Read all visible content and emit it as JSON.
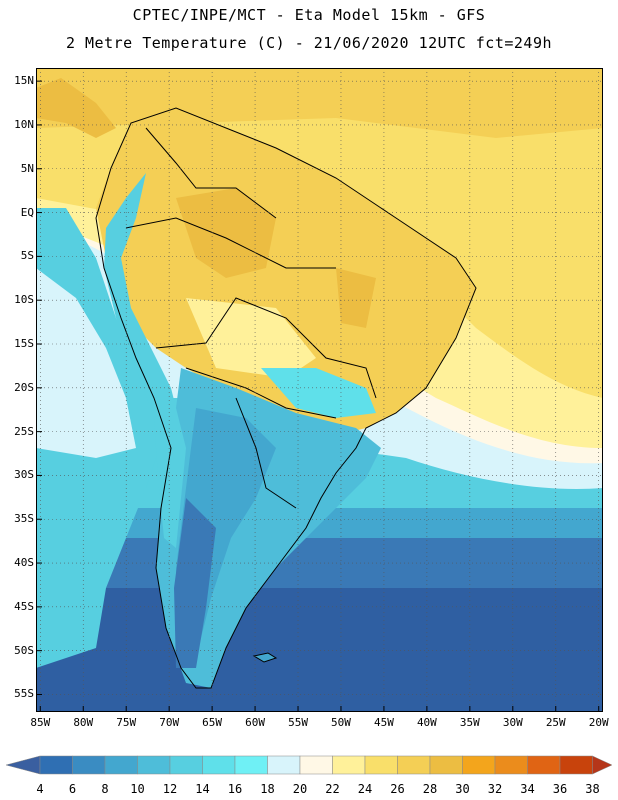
{
  "header": {
    "line1": "CPTEC/INPE/MCT -  Eta Model 15km - GFS",
    "line2": "2 Metre Temperature (C) - 21/06/2020 12UTC fct=249h"
  },
  "map": {
    "lat_labels": [
      "15N",
      "10N",
      "5N",
      "EQ",
      "5S",
      "10S",
      "15S",
      "20S",
      "25S",
      "30S",
      "35S",
      "40S",
      "45S",
      "50S",
      "55S"
    ],
    "lon_labels": [
      "85W",
      "80W",
      "75W",
      "70W",
      "65W",
      "60W",
      "55W",
      "50W",
      "45W",
      "40W",
      "35W",
      "30W",
      "25W",
      "20W"
    ],
    "lat_range": [
      16.5,
      -57
    ],
    "lon_range": [
      -85.5,
      -19.5
    ]
  },
  "colorbar": {
    "labels": [
      "4",
      "6",
      "8",
      "10",
      "12",
      "14",
      "16",
      "18",
      "20",
      "22",
      "24",
      "26",
      "28",
      "30",
      "32",
      "34",
      "36",
      "38"
    ],
    "colors": [
      "#3a5fa0",
      "#2f6fb3",
      "#3a8cc2",
      "#43a7cf",
      "#4ebdd9",
      "#57cfe0",
      "#5fe0ea",
      "#6ff0f5",
      "#d8f4fb",
      "#fff8e6",
      "#fff19a",
      "#f9df6a",
      "#f4cf55",
      "#ecbd42",
      "#f3a51c",
      "#eb8c1c",
      "#e06414",
      "#c8430c",
      "#b5361a"
    ]
  }
}
